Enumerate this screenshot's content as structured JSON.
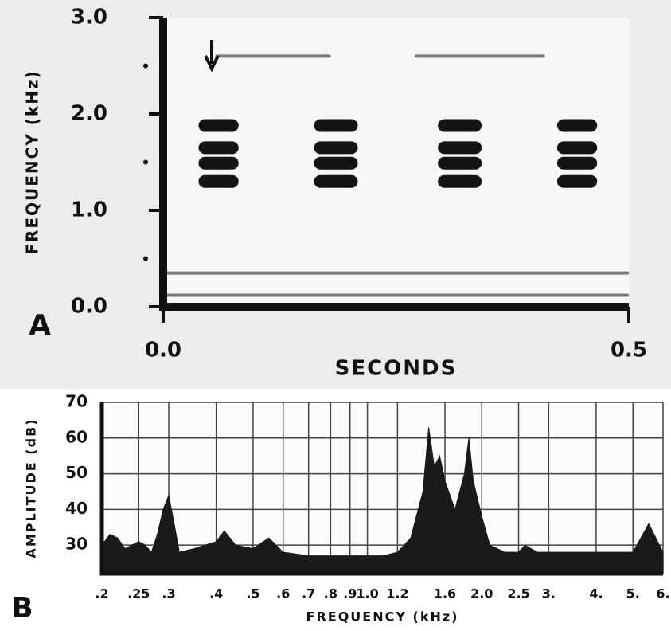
{
  "chart_data": [
    {
      "type": "spectrogram",
      "panel": "A",
      "y_label": "FREQUENCY (kHz)",
      "x_label": "SECONDS",
      "color": "#141414",
      "xlim": [
        0,
        0.5
      ],
      "ylim": [
        0,
        3
      ],
      "xticks": [
        {
          "value": 0,
          "label": "0.0"
        },
        {
          "value": 0.5,
          "label": "0.5"
        }
      ],
      "yticks": [
        {
          "value": 0,
          "label": "0.0"
        },
        {
          "value": 1,
          "label": "1.0"
        },
        {
          "value": 2,
          "label": "2.0"
        },
        {
          "value": 3,
          "label": "3.0"
        }
      ],
      "minor_yticks": [
        0.5,
        1.5,
        2.5
      ],
      "notes": [
        {
          "start": 0.038,
          "end": 0.081,
          "freqs": [
            1.3,
            1.49,
            1.65,
            1.88
          ]
        },
        {
          "start": 0.162,
          "end": 0.209,
          "freqs": [
            1.3,
            1.49,
            1.65,
            1.88
          ]
        },
        {
          "start": 0.295,
          "end": 0.342,
          "freqs": [
            1.3,
            1.49,
            1.65,
            1.88
          ]
        },
        {
          "start": 0.423,
          "end": 0.466,
          "freqs": [
            1.3,
            1.49,
            1.65,
            1.88
          ]
        }
      ],
      "lines": [
        {
          "start": 0.056,
          "end": 0.18,
          "freq": 2.6
        },
        {
          "start": 0.27,
          "end": 0.41,
          "freq": 2.6
        },
        {
          "start": 0.0,
          "end": 0.5,
          "freq": 0.35
        },
        {
          "start": 0.0,
          "end": 0.5,
          "freq": 0.12
        }
      ]
    },
    {
      "type": "area",
      "panel": "B",
      "y_label": "AMPLITUDE (dB)",
      "x_label": "FREQUENCY (kHz)",
      "color": "#1a1a1a",
      "xscale": "log",
      "grid": true,
      "xlim": [
        0.2,
        6
      ],
      "ylim": [
        22,
        70
      ],
      "xticks": [
        {
          "value": 0.2,
          "label": ".2"
        },
        {
          "value": 0.25,
          "label": ".25"
        },
        {
          "value": 0.3,
          "label": ".3"
        },
        {
          "value": 0.4,
          "label": ".4"
        },
        {
          "value": 0.5,
          "label": ".5"
        },
        {
          "value": 0.6,
          "label": ".6"
        },
        {
          "value": 0.7,
          "label": ".7"
        },
        {
          "value": 0.8,
          "label": ".8"
        },
        {
          "value": 0.9,
          "label": ".9"
        },
        {
          "value": 1,
          "label": "1.0"
        },
        {
          "value": 1.2,
          "label": "1.2"
        },
        {
          "value": 1.6,
          "label": "1.6"
        },
        {
          "value": 2,
          "label": "2.0"
        },
        {
          "value": 2.5,
          "label": "2.5"
        },
        {
          "value": 3,
          "label": "3."
        },
        {
          "value": 4,
          "label": "4."
        },
        {
          "value": 5,
          "label": "5."
        },
        {
          "value": 6,
          "label": "6."
        }
      ],
      "yticks": [
        30,
        40,
        50,
        60,
        70
      ],
      "x": [
        0.2,
        0.21,
        0.22,
        0.23,
        0.25,
        0.26,
        0.27,
        0.28,
        0.29,
        0.3,
        0.31,
        0.32,
        0.35,
        0.4,
        0.42,
        0.45,
        0.5,
        0.55,
        0.6,
        0.7,
        0.8,
        0.9,
        1.0,
        1.1,
        1.2,
        1.3,
        1.4,
        1.45,
        1.5,
        1.55,
        1.6,
        1.7,
        1.8,
        1.85,
        1.9,
        2.0,
        2.1,
        2.3,
        2.5,
        2.6,
        2.8,
        3.0,
        4.0,
        5.0,
        5.5,
        6.0
      ],
      "values": [
        30,
        33,
        32,
        29,
        31,
        30,
        28,
        33,
        40,
        44,
        36,
        28,
        29,
        31,
        34,
        30,
        29,
        32,
        28,
        27,
        27,
        27,
        27,
        27,
        28,
        32,
        45,
        63,
        52,
        55,
        48,
        40,
        50,
        60,
        48,
        38,
        30,
        28,
        28,
        30,
        28,
        28,
        28,
        28,
        36,
        28
      ]
    }
  ]
}
